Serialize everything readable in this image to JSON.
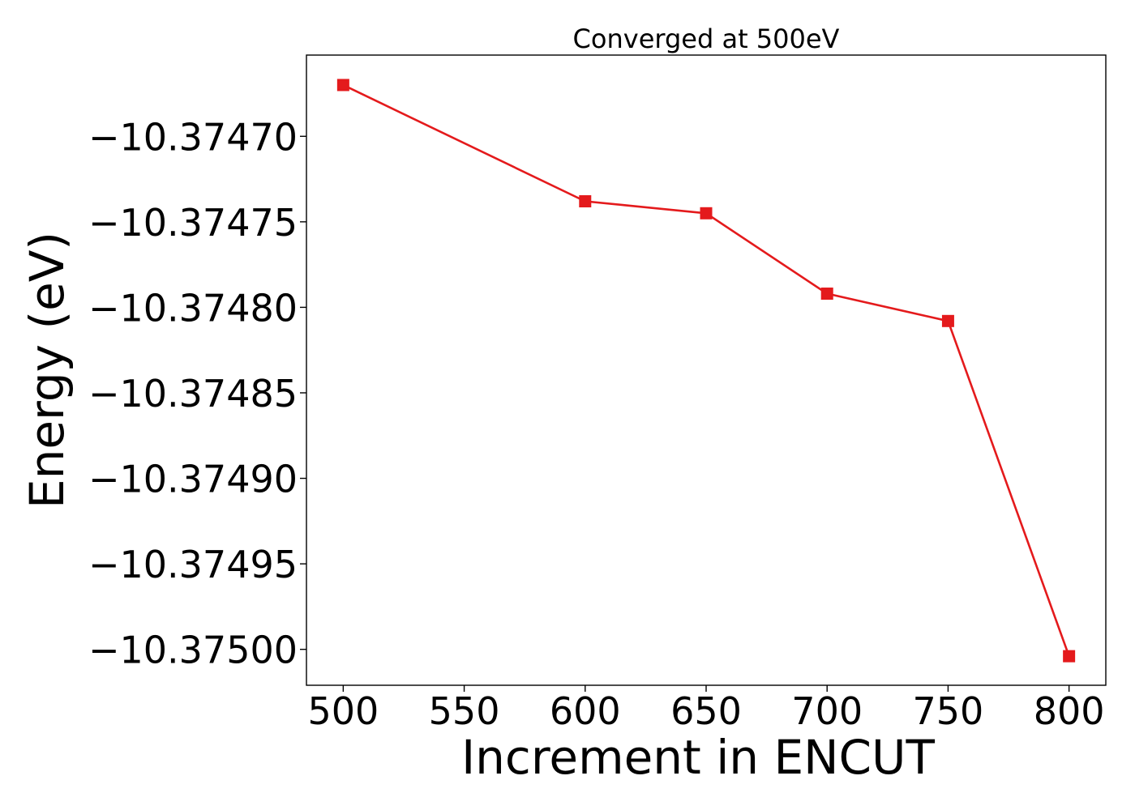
{
  "chart_data": {
    "type": "line",
    "title": "Converged at 500eV",
    "xlabel": "Increment in ENCUT",
    "ylabel": "Energy (eV)",
    "x": [
      500,
      600,
      650,
      700,
      750,
      800
    ],
    "series": [
      {
        "values": [
          -10.37467,
          -10.374738,
          -10.374745,
          -10.374792,
          -10.374808,
          -10.375004
        ],
        "color": "#e41a1c",
        "marker": "square"
      }
    ],
    "x_ticks": [
      500,
      550,
      600,
      650,
      700,
      750,
      800
    ],
    "x_tick_labels": [
      "500",
      "550",
      "600",
      "650",
      "700",
      "750",
      "800"
    ],
    "y_ticks": [
      -10.3747,
      -10.37475,
      -10.3748,
      -10.37485,
      -10.3749,
      -10.37495,
      -10.375
    ],
    "y_tick_labels": [
      "−10.37470",
      "−10.37475",
      "−10.37480",
      "−10.37485",
      "−10.37490",
      "−10.37495",
      "−10.37500"
    ],
    "xlim": [
      484.8,
      815.2
    ],
    "ylim": [
      -10.375021,
      -10.3746525
    ],
    "grid": false,
    "legend": false
  }
}
